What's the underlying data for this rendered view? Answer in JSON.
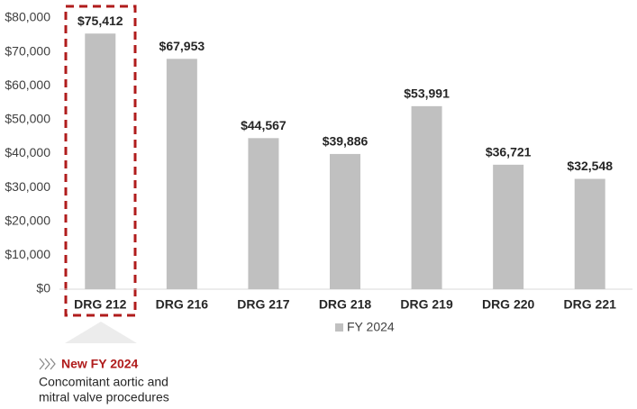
{
  "chart_data": {
    "type": "bar",
    "categories": [
      "DRG 212",
      "DRG 216",
      "DRG 217",
      "DRG 218",
      "DRG 219",
      "DRG 220",
      "DRG 221"
    ],
    "series": [
      {
        "name": "FY 2024",
        "color": "#c0c0c0",
        "values": [
          75412,
          67953,
          44567,
          39886,
          53991,
          36721,
          32548
        ],
        "value_labels": [
          "$75,412",
          "$67,953",
          "$44,567",
          "$39,886",
          "$53,991",
          "$36,721",
          "$32,548"
        ]
      }
    ],
    "ylim": [
      0,
      80000
    ],
    "yticks": [
      {
        "value": 0,
        "label": "$0"
      },
      {
        "value": 10000,
        "label": "$10,000"
      },
      {
        "value": 20000,
        "label": "$20,000"
      },
      {
        "value": 30000,
        "label": "$30,000"
      },
      {
        "value": 40000,
        "label": "$40,000"
      },
      {
        "value": 50000,
        "label": "$50,000"
      },
      {
        "value": 60000,
        "label": "$60,000"
      },
      {
        "value": 70000,
        "label": "$70,000"
      },
      {
        "value": 80000,
        "label": "$80,000"
      }
    ],
    "grid": false,
    "annotation": {
      "title": "New FY 2024",
      "lines": [
        "Concomitant aortic and",
        "mitral valve procedures"
      ]
    }
  }
}
